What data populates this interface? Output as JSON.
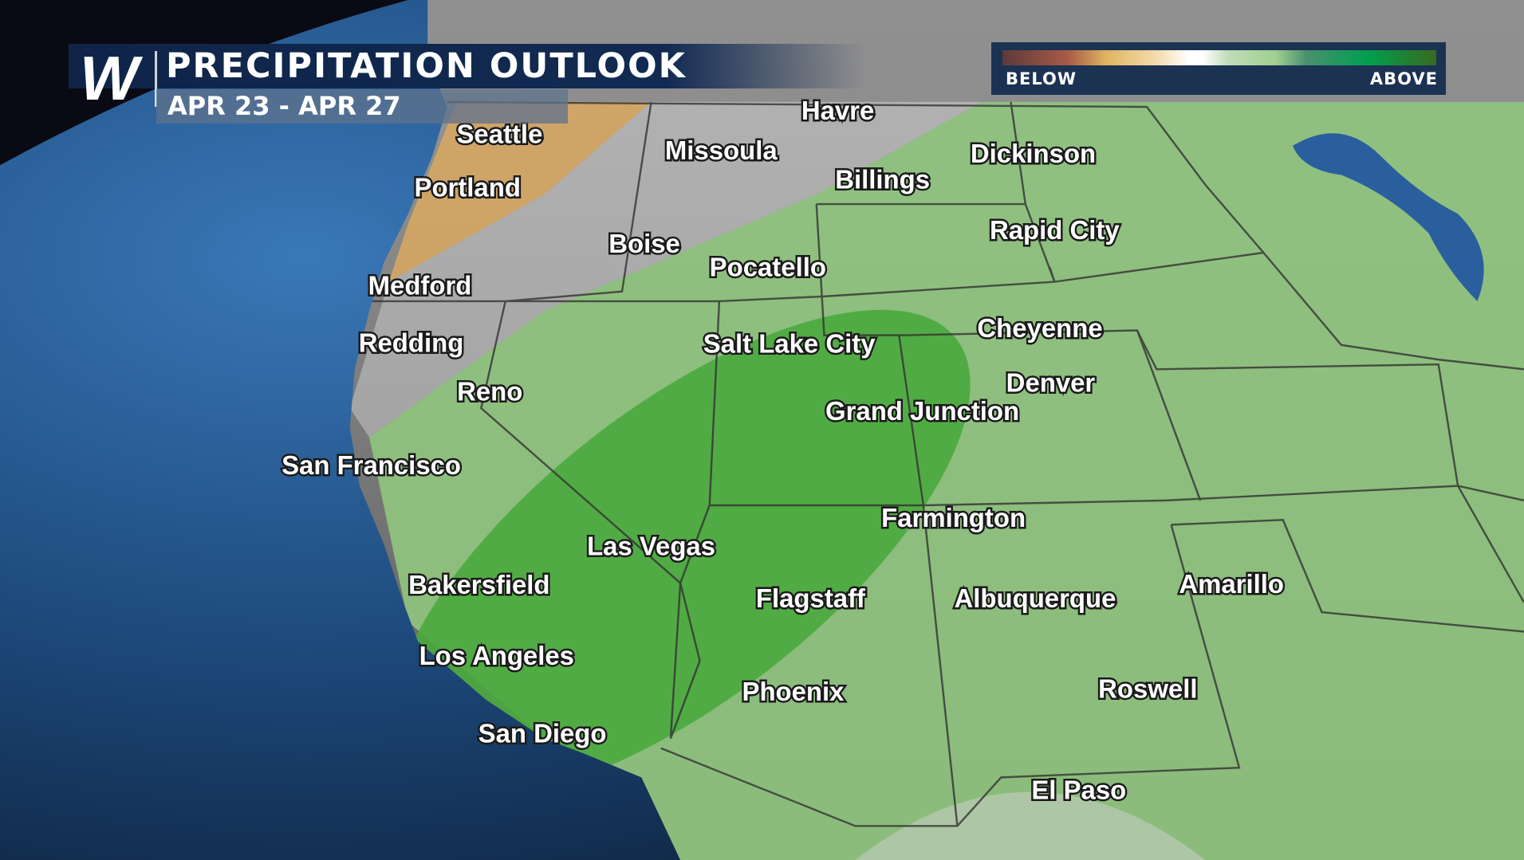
{
  "header": {
    "logo": "W",
    "title": "PRECIPITATION OUTLOOK",
    "subtitle": "APR 23 - APR 27"
  },
  "legend": {
    "low_label": "BELOW",
    "high_label": "ABOVE",
    "colors": [
      "#5e3a3a",
      "#a85a48",
      "#e0b460",
      "#f4deb0",
      "#ffffff",
      "#a0d090",
      "#00a050",
      "#386a20"
    ]
  },
  "map": {
    "colors": {
      "ocean": "#1e4a7a",
      "land": "#8a8a8a",
      "below": "#d9a860",
      "near_normal": "#c8c8c8",
      "above": "#8fc47e",
      "well_above": "#4aa83e"
    },
    "cities": [
      {
        "name": "Seattle"
      },
      {
        "name": "Portland"
      },
      {
        "name": "Havre"
      },
      {
        "name": "Missoula"
      },
      {
        "name": "Billings"
      },
      {
        "name": "Dickinson"
      },
      {
        "name": "Boise"
      },
      {
        "name": "Pocatello"
      },
      {
        "name": "Rapid City"
      },
      {
        "name": "Medford"
      },
      {
        "name": "Redding"
      },
      {
        "name": "Salt Lake City"
      },
      {
        "name": "Cheyenne"
      },
      {
        "name": "Reno"
      },
      {
        "name": "Denver"
      },
      {
        "name": "Grand Junction"
      },
      {
        "name": "San Francisco"
      },
      {
        "name": "Farmington"
      },
      {
        "name": "Las Vegas"
      },
      {
        "name": "Bakersfield"
      },
      {
        "name": "Flagstaff"
      },
      {
        "name": "Albuquerque"
      },
      {
        "name": "Amarillo"
      },
      {
        "name": "Los Angeles"
      },
      {
        "name": "Phoenix"
      },
      {
        "name": "Roswell"
      },
      {
        "name": "San Diego"
      },
      {
        "name": "El Paso"
      }
    ]
  }
}
